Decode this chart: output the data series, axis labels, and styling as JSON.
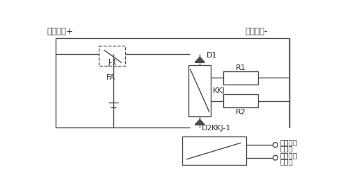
{
  "bg_color": "#ffffff",
  "line_color": "#4a4a4a",
  "text_color": "#333333",
  "labels": {
    "top_left": "电源正极+",
    "top_right": "电源负极-",
    "J1": "J-1",
    "FA": "FA",
    "D1": "D1",
    "D2": "D2",
    "KKJ": "KKJ",
    "KKJ1": "KKJ-1",
    "R1": "R1",
    "R2": "R2",
    "alarm_out1": "报警信号",
    "alarm_out2": "输出端",
    "alarm_in1": "报警信号",
    "alarm_in2": "输入端"
  }
}
